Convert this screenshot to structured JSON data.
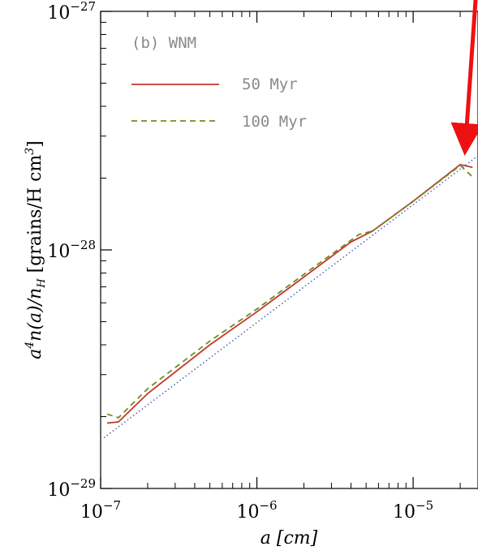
{
  "chart_data": {
    "type": "line",
    "panel_label": "(b) WNM",
    "xlabel": "a [cm]",
    "ylabel": "a⁴n(a)/n_H [grains/H cm³]",
    "xscale": "log",
    "yscale": "log",
    "xlim": [
      1e-07,
      2.6e-05
    ],
    "ylim": [
      1e-29,
      1e-27
    ],
    "x_ticks": [
      {
        "value": 1e-07,
        "base": "10",
        "exp": "−7"
      },
      {
        "value": 1e-06,
        "base": "10",
        "exp": "−6"
      },
      {
        "value": 1e-05,
        "base": "10",
        "exp": "−5"
      }
    ],
    "y_ticks": [
      {
        "value": 1e-29,
        "base": "10",
        "exp": "−29"
      },
      {
        "value": 1e-28,
        "base": "10",
        "exp": "−28"
      },
      {
        "value": 1e-27,
        "base": "10",
        "exp": "−27"
      }
    ],
    "legend_position": "top-left",
    "series": [
      {
        "name": "50 Myr",
        "color": "#c0392b",
        "style": "solid",
        "x": [
          1.1e-07,
          1.3e-07,
          2e-07,
          5e-07,
          1e-06,
          2e-06,
          4e-06,
          5.5e-06,
          1e-05,
          2e-05,
          2.4e-05
        ],
        "y": [
          1.88e-29,
          1.9e-29,
          2.5e-29,
          4e-29,
          5.5e-29,
          7.7e-29,
          1.08e-28,
          1.2e-28,
          1.6e-28,
          2.28e-28,
          2.22e-28
        ]
      },
      {
        "name": "100 Myr",
        "color": "#6b8e23",
        "style": "dashed",
        "x": [
          1.1e-07,
          1.3e-07,
          2e-07,
          5e-07,
          1e-06,
          2e-06,
          4.5e-06,
          5.5e-06,
          1e-05,
          2e-05,
          2.45e-05
        ],
        "y": [
          2.05e-29,
          1.98e-29,
          2.62e-29,
          4.15e-29,
          5.65e-29,
          7.9e-29,
          1.16e-28,
          1.2e-28,
          1.6e-28,
          2.26e-28,
          2e-28
        ]
      },
      {
        "name": "",
        "color": "#4a6fb5",
        "style": "dotted",
        "x": [
          1.05e-07,
          2.6e-05
        ],
        "y": [
          1.63e-29,
          2.48e-28
        ]
      }
    ]
  },
  "annotation": {
    "type": "arrow",
    "color": "#ee1111"
  }
}
